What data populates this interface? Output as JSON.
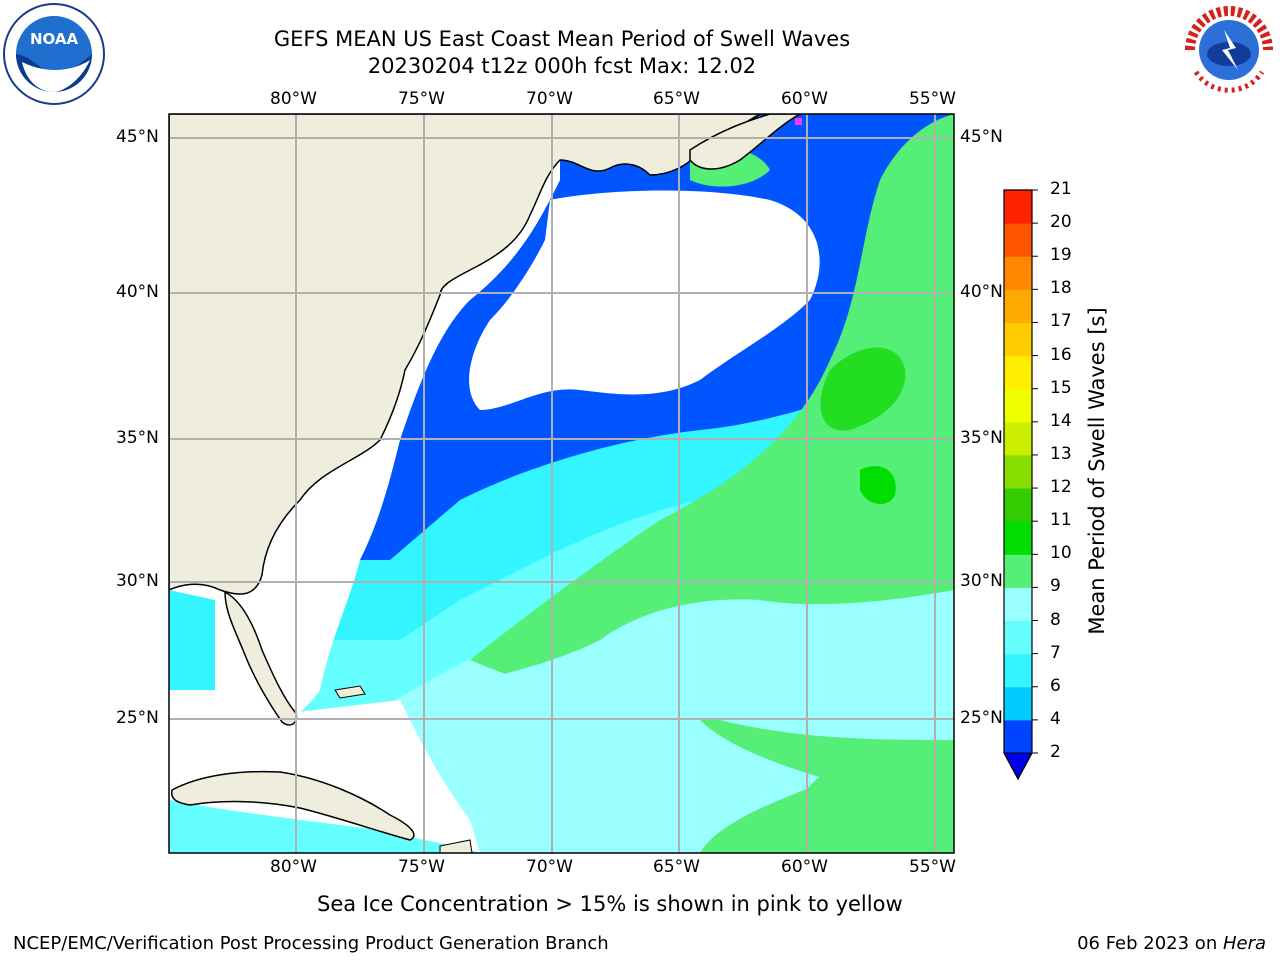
{
  "title_line1": "GEFS MEAN US East Coast Mean Period of Swell Waves",
  "title_line2": "20230204 t12z 000h fcst   Max: 12.02",
  "lon_labels": [
    "80°W",
    "75°W",
    "70°W",
    "65°W",
    "60°W",
    "55°W"
  ],
  "lat_labels": [
    "45°N",
    "40°N",
    "35°N",
    "30°N",
    "25°N"
  ],
  "colorbar": {
    "label": "Mean Period of Swell Waves [s]",
    "ticks": [
      "2",
      "4",
      "6",
      "7",
      "8",
      "9",
      "10",
      "11",
      "12",
      "13",
      "14",
      "15",
      "16",
      "17",
      "18",
      "19",
      "20",
      "21"
    ],
    "colors": [
      "#0044ff",
      "#00ccff",
      "#33f5ff",
      "#66ffff",
      "#99ffff",
      "#55ee77",
      "#00dd00",
      "#33cc00",
      "#88dd00",
      "#ccee00",
      "#eeff00",
      "#ffee00",
      "#ffcc00",
      "#ffaa00",
      "#ff8800",
      "#ff5500",
      "#ff2200",
      "#ff0000"
    ],
    "under_color": "#0000ee"
  },
  "ice_note": "Sea Ice Concentration > 15% is shown in pink to yellow",
  "footer_left": "NCEP/EMC/Verification Post Processing Product Generation Branch",
  "footer_date": "06 Feb 2023 on ",
  "footer_machine": "Hera",
  "logo_left": "NOAA",
  "logo_right": "NATIONAL WEATHER SERVICE",
  "colors": {
    "land": "#efeedc",
    "grid": "#b0b0b0",
    "ocean_main": "#99ffff",
    "missing": "#ffffff"
  }
}
